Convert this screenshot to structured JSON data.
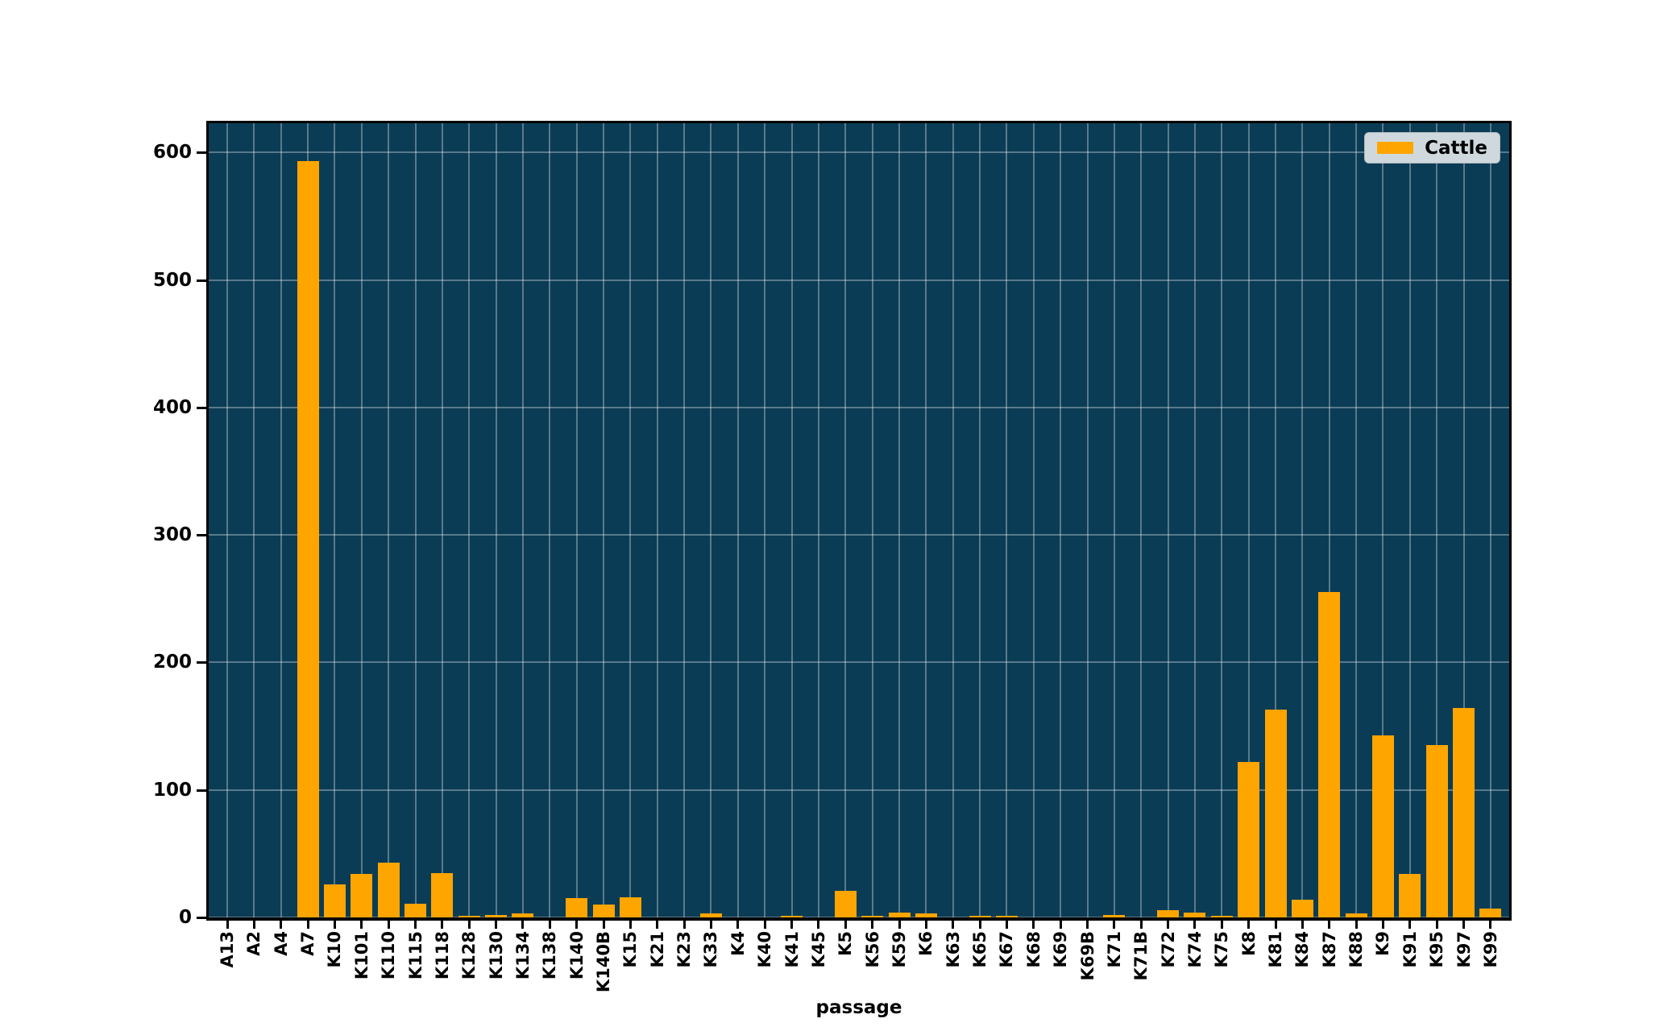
{
  "chart_data": {
    "type": "bar",
    "title": "",
    "xlabel": "passage",
    "ylabel": "",
    "categories": [
      "A13",
      "A2",
      "A4",
      "A7",
      "K10",
      "K101",
      "K110",
      "K115",
      "K118",
      "K128",
      "K130",
      "K134",
      "K138",
      "K140",
      "K140B",
      "K15",
      "K21",
      "K23",
      "K33",
      "K4",
      "K40",
      "K41",
      "K45",
      "K5",
      "K56",
      "K59",
      "K6",
      "K63",
      "K65",
      "K67",
      "K68",
      "K69",
      "K69B",
      "K71",
      "K71B",
      "K72",
      "K74",
      "K75",
      "K8",
      "K81",
      "K84",
      "K87",
      "K88",
      "K9",
      "K91",
      "K95",
      "K97",
      "K99"
    ],
    "series": [
      {
        "name": "Cattle",
        "color": "#FFA500",
        "values": [
          0,
          0,
          0,
          593,
          26,
          34,
          43,
          11,
          35,
          1,
          2,
          3,
          0,
          15,
          10,
          16,
          0,
          0,
          3,
          0,
          0,
          1,
          0,
          21,
          1,
          4,
          3,
          0,
          1,
          1,
          0,
          0,
          0,
          2,
          0,
          6,
          4,
          1,
          122,
          163,
          14,
          255,
          3,
          143,
          34,
          135,
          164,
          7
        ]
      }
    ],
    "y_tick_labels": [
      "0",
      "100",
      "200",
      "300",
      "400",
      "500",
      "600"
    ],
    "yticks": [
      0,
      100,
      200,
      300,
      400,
      500,
      600
    ],
    "ylim": [
      0,
      623
    ],
    "grid": true,
    "legend_position": "upper right",
    "colors": {
      "plot_background": "#0b3c55",
      "figure_background": "#ffffff",
      "bar": "#FFA500",
      "gridline": "rgba(255,255,255,0.32)",
      "axis_text": "#000000",
      "legend_background": "#cfd9dd"
    }
  }
}
